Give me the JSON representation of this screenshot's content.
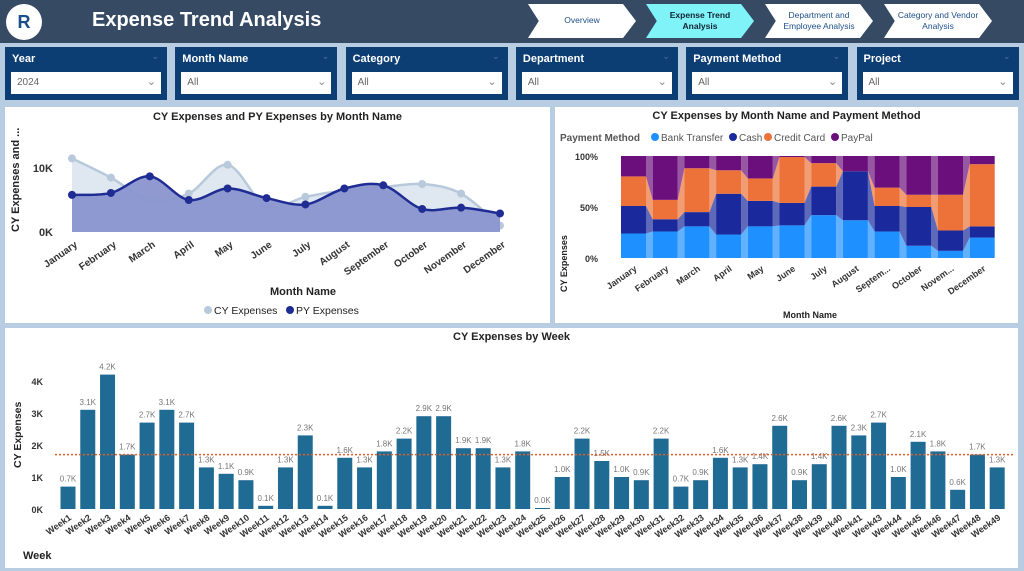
{
  "header": {
    "title": "Expense Trend Analysis",
    "logo_text": "R"
  },
  "nav": [
    {
      "label": "Overview"
    },
    {
      "label": "Expense Trend Analysis"
    },
    {
      "label": "Department and Employee Analysis"
    },
    {
      "label": "Category and Vendor Analysis"
    }
  ],
  "slicers": [
    {
      "label": "Year",
      "value": "2024"
    },
    {
      "label": "Month Name",
      "value": "All"
    },
    {
      "label": "Category",
      "value": "All"
    },
    {
      "label": "Department",
      "value": "All"
    },
    {
      "label": "Payment Method",
      "value": "All"
    },
    {
      "label": "Project",
      "value": "All"
    }
  ],
  "colors": {
    "cy": "#b9c9dc",
    "py": "#1f2c93",
    "bank": "#1e90ff",
    "cash": "#1a2a9c",
    "credit": "#ec7239",
    "paypal": "#6b0f7c",
    "bar": "#1f6b93",
    "avg": "#e0602a"
  },
  "chart_data": [
    {
      "type": "area",
      "title": "CY Expenses and PY Expenses by Month Name",
      "xlabel": "Month Name",
      "ylabel": "CY Expenses and ...",
      "yticks": [
        "0K",
        "10K"
      ],
      "ylim": [
        0,
        13000
      ],
      "legend": "bottom",
      "categories": [
        "January",
        "February",
        "March",
        "April",
        "May",
        "June",
        "July",
        "August",
        "September",
        "October",
        "November",
        "December"
      ],
      "series": [
        {
          "name": "CY Expenses",
          "values": [
            11500,
            8500,
            5000,
            6000,
            10500,
            4000,
            5500,
            6500,
            7000,
            7500,
            6000,
            1000
          ]
        },
        {
          "name": "PY Expenses",
          "values": [
            5800,
            6100,
            8700,
            5000,
            6800,
            5300,
            4300,
            6800,
            7300,
            3600,
            3800,
            2900
          ]
        }
      ]
    },
    {
      "type": "stacked-bar-100",
      "title": "CY Expenses by Month Name and Payment Method",
      "xlabel": "Month Name",
      "ylabel": "CY Expenses",
      "legend_title": "Payment Method",
      "yticks": [
        "0%",
        "50%",
        "100%"
      ],
      "legend": "top-left",
      "categories": [
        "January",
        "February",
        "March",
        "April",
        "May",
        "June",
        "July",
        "August",
        "Septem...",
        "October",
        "Novem...",
        "December"
      ],
      "series": [
        {
          "name": "Bank Transfer",
          "values": [
            24,
            26,
            31,
            23,
            31,
            32,
            42,
            37,
            26,
            12,
            7,
            20
          ]
        },
        {
          "name": "Cash",
          "values": [
            27,
            12,
            14,
            40,
            25,
            22,
            28,
            48,
            25,
            38,
            20,
            11
          ]
        },
        {
          "name": "Credit Card",
          "values": [
            29,
            19,
            43,
            23,
            22,
            45,
            23,
            0,
            18,
            12,
            35,
            61
          ]
        },
        {
          "name": "PayPal",
          "values": [
            20,
            43,
            12,
            14,
            22,
            1,
            7,
            15,
            31,
            38,
            38,
            8
          ]
        }
      ]
    },
    {
      "type": "bar",
      "title": "CY Expenses by Week",
      "xlabel": "Week",
      "ylabel": "CY Expenses",
      "yticks": [
        "0K",
        "1K",
        "2K",
        "3K",
        "4K"
      ],
      "ylim": [
        0,
        4.5
      ],
      "average_line": 1.7,
      "categories": [
        "Week1",
        "Week2",
        "Week3",
        "Week4",
        "Week5",
        "Week6",
        "Week7",
        "Week8",
        "Week9",
        "Week10",
        "Week11",
        "Week12",
        "Week13",
        "Week14",
        "Week15",
        "Week16",
        "Week17",
        "Week18",
        "Week19",
        "Week20",
        "Week21",
        "Week22",
        "Week23",
        "Week24",
        "Week25",
        "Week26",
        "Week27",
        "Week28",
        "Week29",
        "Week30",
        "Week31",
        "Week32",
        "Week33",
        "Week34",
        "Week35",
        "Week36",
        "Week37",
        "Week38",
        "Week39",
        "Week40",
        "Week41",
        "Week43",
        "Week44",
        "Week45",
        "Week46",
        "Week47",
        "Week48",
        "Week49"
      ],
      "values": [
        0.7,
        3.1,
        4.2,
        1.7,
        2.7,
        3.1,
        2.7,
        1.3,
        1.1,
        0.9,
        0.1,
        1.3,
        2.3,
        0.1,
        1.6,
        1.3,
        1.8,
        2.2,
        2.9,
        2.9,
        1.9,
        1.9,
        1.3,
        1.8,
        0.0,
        1.0,
        2.2,
        1.5,
        1.0,
        0.9,
        2.2,
        0.7,
        0.9,
        1.6,
        1.3,
        1.4,
        2.6,
        0.9,
        1.4,
        2.6,
        2.3,
        2.7,
        1.0,
        2.1,
        1.8,
        0.6,
        1.7,
        1.3
      ],
      "labels": [
        "0.7K",
        "3.1K",
        "4.2K",
        "1.7K",
        "2.7K",
        "3.1K",
        "2.7K",
        "1.3K",
        "1.1K",
        "0.9K",
        "0.1K",
        "1.3K",
        "2.3K",
        "0.1K",
        "1.6K",
        "1.3K",
        "1.8K",
        "2.2K",
        "2.9K",
        "2.9K",
        "1.9K",
        "1.9K",
        "1.3K",
        "1.8K",
        "0.0K",
        "1.0K",
        "2.2K",
        "1.5K",
        "1.0K",
        "0.9K",
        "2.2K",
        "0.7K",
        "0.9K",
        "1.6K",
        "1.3K",
        "1.4K",
        "2.6K",
        "0.9K",
        "1.4K",
        "2.6K",
        "2.3K",
        "2.7K",
        "1.0K",
        "2.1K",
        "1.8K",
        "0.6K",
        "1.7K",
        "1.3K"
      ]
    }
  ]
}
